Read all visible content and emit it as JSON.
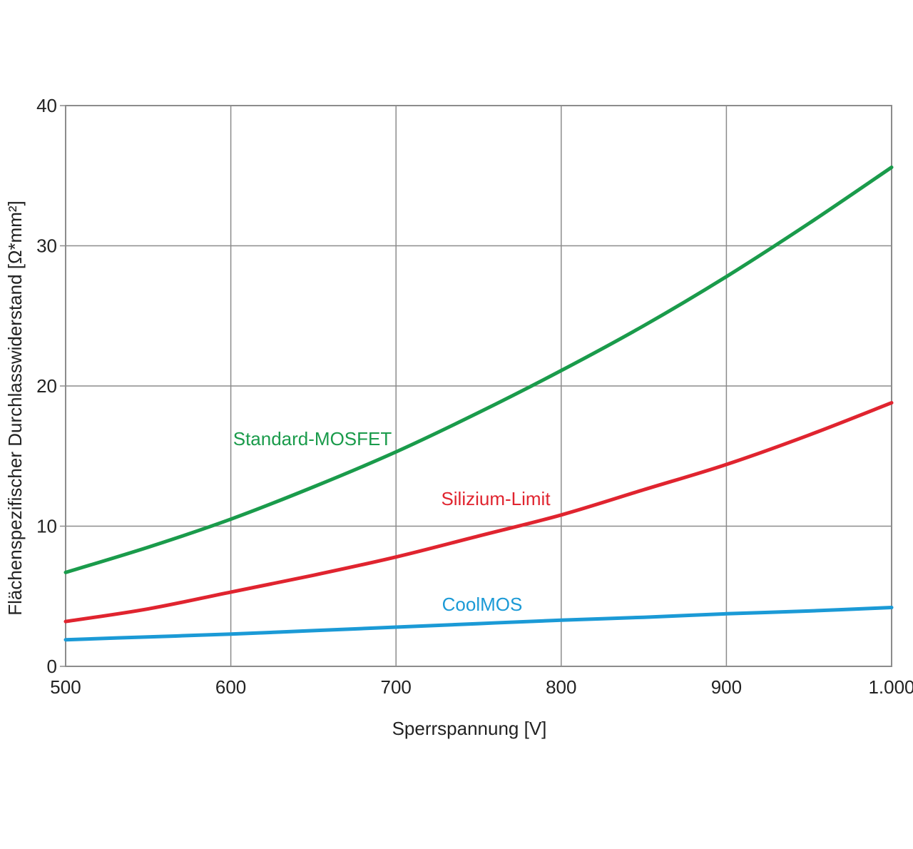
{
  "chart_data": {
    "type": "line",
    "title": "",
    "xlabel": "Sperrspannung [V]",
    "ylabel": "Flächenspezifischer Durchlasswiderstand [Ω*mm²]",
    "xlim": [
      500,
      1000
    ],
    "ylim": [
      0,
      40
    ],
    "grid": true,
    "x_ticks": [
      500,
      600,
      700,
      800,
      900,
      1000
    ],
    "x_tick_labels": [
      "500",
      "600",
      "700",
      "800",
      "900",
      "1.000"
    ],
    "y_ticks": [
      0,
      10,
      20,
      30,
      40
    ],
    "y_tick_labels": [
      "0",
      "10",
      "20",
      "30",
      "40"
    ],
    "x": [
      500,
      550,
      600,
      650,
      700,
      750,
      800,
      850,
      900,
      950,
      1000
    ],
    "series": [
      {
        "name": "Standard-MOSFET",
        "color": "#1a9b4b",
        "values": [
          6.7,
          8.5,
          10.5,
          12.8,
          15.3,
          18.1,
          21.1,
          24.3,
          27.8,
          31.6,
          35.6
        ],
        "label_at": [
          700,
          16
        ]
      },
      {
        "name": "Silizium-Limit",
        "color": "#e0242f",
        "values": [
          3.2,
          4.1,
          5.3,
          6.5,
          7.8,
          9.3,
          10.8,
          12.6,
          14.4,
          16.5,
          18.8
        ],
        "label_at": [
          775,
          11.5
        ]
      },
      {
        "name": "CoolMOS",
        "color": "#1b9ad6",
        "values": [
          1.9,
          2.1,
          2.3,
          2.55,
          2.8,
          3.05,
          3.3,
          3.5,
          3.75,
          3.95,
          4.2
        ],
        "label_at": [
          755,
          4.0
        ]
      }
    ]
  }
}
